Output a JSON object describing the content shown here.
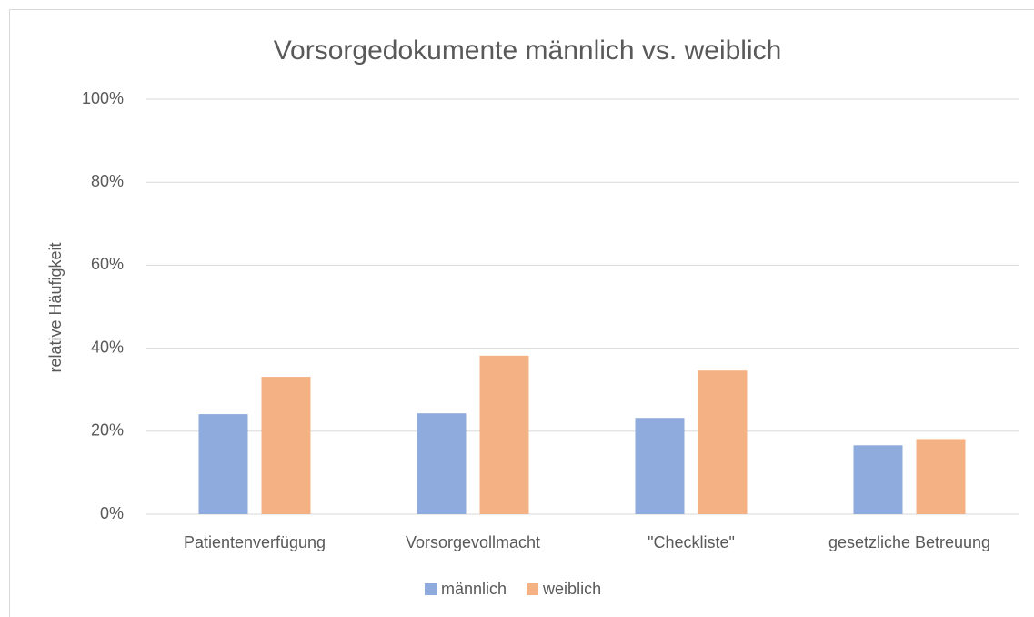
{
  "chart_data": {
    "type": "bar",
    "title": "Vorsorgedokumente männlich vs. weiblich",
    "y_label": "relative Häufigkeit",
    "categories": [
      "Patientenverfügung",
      "Vorsorgevollmacht",
      "\"Checkliste\"",
      "gesetzliche Betreuung"
    ],
    "series": [
      {
        "name": "männlich",
        "color": "#8faadc",
        "values": [
          24.1,
          24.3,
          23.2,
          16.6
        ]
      },
      {
        "name": "weiblich",
        "color": "#f4b183",
        "values": [
          33.1,
          38.2,
          34.6,
          18.1
        ]
      }
    ],
    "ylim": [
      0,
      100
    ],
    "yticks": [
      {
        "value": 0,
        "label": "0%"
      },
      {
        "value": 20,
        "label": "20%"
      },
      {
        "value": 40,
        "label": "40%"
      },
      {
        "value": 60,
        "label": "60%"
      },
      {
        "value": 80,
        "label": "80%"
      },
      {
        "value": 100,
        "label": "100%"
      }
    ],
    "grid": true,
    "legend": "bottom"
  }
}
